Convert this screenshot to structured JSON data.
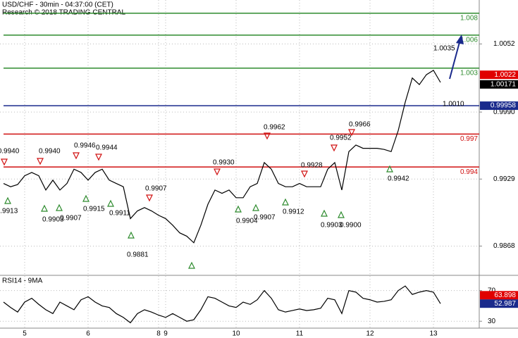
{
  "chart_data": [
    {
      "type": "line",
      "title": "USD/CHF - 30min - 04:37:00 (CET)",
      "subtitle": "Research © 2018 TRADING CENTRAL",
      "categories": [
        null,
        null,
        null,
        "5",
        null,
        null,
        null,
        null,
        null,
        null,
        null,
        null,
        "6",
        null,
        null,
        null,
        null,
        null,
        null,
        null,
        null,
        null,
        "8",
        "9",
        null,
        null,
        null,
        null,
        null,
        null,
        null,
        null,
        null,
        "10",
        null,
        null,
        null,
        null,
        null,
        null,
        null,
        null,
        "11",
        null,
        null,
        null,
        null,
        null,
        null,
        null,
        null,
        null,
        "12",
        null,
        null,
        null,
        null,
        null,
        null,
        null,
        null,
        "13",
        null
      ],
      "values": [
        0.9925,
        0.9922,
        0.9924,
        0.9932,
        0.9935,
        0.9932,
        0.9919,
        0.9928,
        0.9919,
        0.9925,
        0.9938,
        0.9935,
        0.9928,
        0.9935,
        0.9938,
        0.9928,
        0.9925,
        0.9922,
        0.9893,
        0.99,
        0.9903,
        0.99,
        0.9896,
        0.9893,
        0.9887,
        0.988,
        0.9877,
        0.9871,
        0.9887,
        0.9906,
        0.9919,
        0.9916,
        0.9919,
        0.9912,
        0.9912,
        0.9922,
        0.9925,
        0.9944,
        0.9938,
        0.9925,
        0.9922,
        0.9922,
        0.9925,
        0.9922,
        0.9922,
        0.9922,
        0.9938,
        0.9944,
        0.9919,
        0.9954,
        0.996,
        0.9957,
        0.9957,
        0.9957,
        0.9956,
        0.9954,
        0.9973,
        0.9999,
        1.0021,
        1.0015,
        1.0024,
        1.0028,
        1.0017
      ],
      "color": "#000000",
      "ylim": [
        0.9842,
        1.0092
      ],
      "yticks": [
        0.9868,
        0.9929,
        {
          "value": 0.999,
          "label": "0.9990"
        },
        1.0052
      ],
      "grid": true,
      "levels": [
        {
          "value": 1.008,
          "color": "#2e8b2e"
        },
        {
          "value": 1.006,
          "color": "#2e8b2e"
        },
        {
          "value": 1.003,
          "color": "#2e8b2e"
        },
        {
          "value": 0.997,
          "color": "#d01010"
        },
        {
          "value": 0.994,
          "color": "#d01010"
        }
      ],
      "pivot": {
        "value": 0.99958,
        "color": "#1a2a8c"
      },
      "price_labels": [
        {
          "value": 1.0022,
          "color": "#e00000"
        },
        {
          "value": 1.00171,
          "color": "#000000"
        }
      ],
      "annotations": [
        "0.9940",
        "0.9913",
        "0.9940",
        "0.9903",
        "0.9907",
        "0.9946",
        "0.9944",
        "0.9915",
        "0.9911",
        "0.9907",
        "0.9881",
        "0.9930",
        "0.9904",
        "0.9907",
        "0.9962",
        "0.9928",
        "0.9912",
        "0.9952",
        "0.9903",
        "0.9900",
        "0.9966",
        "0.9942",
        "1.0035",
        "1.0010"
      ]
    },
    {
      "type": "line",
      "title": "RSI14 - 9MA",
      "values": [
        55,
        48,
        42,
        55,
        60,
        52,
        45,
        40,
        55,
        50,
        45,
        58,
        62,
        55,
        50,
        48,
        40,
        35,
        28,
        40,
        45,
        42,
        38,
        35,
        40,
        35,
        30,
        32,
        45,
        62,
        60,
        55,
        50,
        48,
        55,
        52,
        58,
        70,
        60,
        45,
        42,
        44,
        46,
        44,
        45,
        47,
        60,
        58,
        40,
        70,
        68,
        60,
        58,
        55,
        56,
        58,
        70,
        76,
        65,
        68,
        70,
        68,
        52.987
      ],
      "color": "#000000",
      "ylim": [
        21,
        89
      ],
      "yticks": [
        30,
        70
      ],
      "grid": true,
      "ma_value": 63.898,
      "ma_color": "#e00000",
      "last_color": "#1a2a8c"
    }
  ]
}
